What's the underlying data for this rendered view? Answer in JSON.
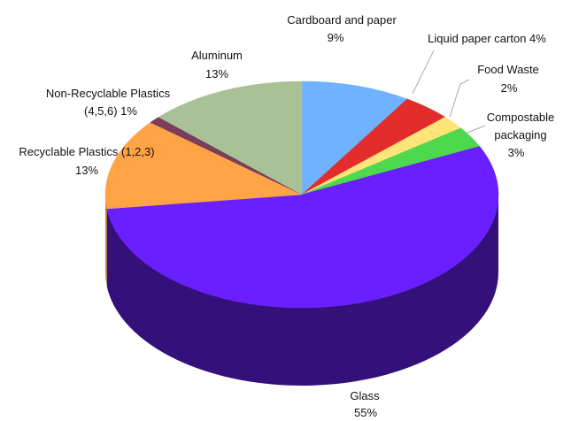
{
  "chart_data": {
    "type": "pie",
    "style": "3d",
    "title": "",
    "slices": [
      {
        "name": "Cardboard and paper",
        "value": 9,
        "value_label": "9%",
        "color": "#6fb2ff",
        "side_color": "#4a86c8"
      },
      {
        "name": "Liquid paper carton",
        "value": 4,
        "value_label": "4%",
        "color": "#e32d2d",
        "side_color": "#a31a1a"
      },
      {
        "name": "Food Waste",
        "value": 2,
        "value_label": "2%",
        "color": "#ffe47a",
        "side_color": "#c9ad40"
      },
      {
        "name": "Compostable packaging",
        "value": 3,
        "value_label": "3%",
        "color": "#4ed84e",
        "side_color": "#2f9a2f"
      },
      {
        "name": "Glass",
        "value": 55,
        "value_label": "55%",
        "color": "#6a1fff",
        "side_color": "#34107a"
      },
      {
        "name": "Recyclable Plastics (1,2,3)",
        "value": 13,
        "value_label": "13%",
        "color": "#ffa347",
        "side_color": "#c87a2c"
      },
      {
        "name": "Non-Recyclable Plastics (4,5,6)",
        "value": 1,
        "value_label": "1%",
        "color": "#7a3d5c",
        "side_color": "#4d2238"
      },
      {
        "name": "Aluminum",
        "value": 13,
        "value_label": "13%",
        "color": "#a9c197",
        "side_color": "#78906a"
      }
    ],
    "labels": [
      {
        "line1": "Cardboard and paper",
        "line2": "9%"
      },
      {
        "line1": "Liquid paper carton  4%",
        "line2": ""
      },
      {
        "line1": "Food Waste",
        "line2": "2%"
      },
      {
        "line1": "Compostable",
        "line2": "packaging"
      },
      {
        "line1": "Glass",
        "line2": "55%"
      },
      {
        "line1": "Recyclable Plastics (1,2,3)",
        "line2": "13%"
      },
      {
        "line1": "Non-Recyclable Plastics",
        "line2": "(4,5,6)  1%"
      },
      {
        "line1": "Aluminum",
        "line2": "13%"
      }
    ],
    "extra_label_line": "3%"
  }
}
